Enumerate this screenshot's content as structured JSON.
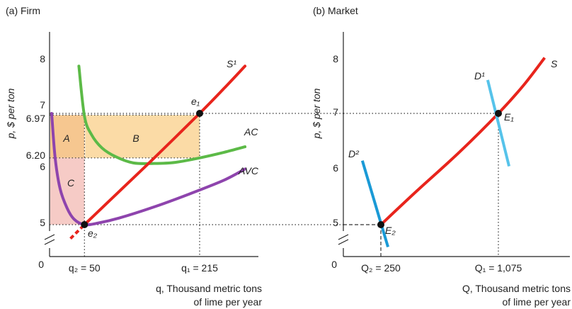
{
  "colors": {
    "axis": "#222222",
    "supply": "#e8241c",
    "ac": "#5cba47",
    "avc": "#8e44ad",
    "demand_high": "#56c3ea",
    "demand_low": "#1a9ad6",
    "region_a": "#f6c790",
    "region_b": "#fbdba6",
    "region_c": "#f6cbc6",
    "point": "#111111"
  },
  "chart_data": [
    {
      "type": "line",
      "panel_title": "(a) Firm",
      "xlabel_line1": "q, Thousand metric tons",
      "xlabel_line2": "of lime per year",
      "ylabel": "p, $ per ton",
      "origin_label": "0",
      "xlim": [
        0,
        280
      ],
      "ylim": [
        4.6,
        8.3
      ],
      "y_break": true,
      "grid": false,
      "y_ticks": [
        {
          "label": "8",
          "value": 8
        },
        {
          "label": "7",
          "value": 7
        },
        {
          "label": "6.97",
          "value": 6.97
        },
        {
          "label": "6.20",
          "value": 6.2
        },
        {
          "label": "6",
          "value": 6
        },
        {
          "label": "5",
          "value": 5
        }
      ],
      "x_ticks": [
        {
          "label": "q₂ = 50",
          "value": 50
        },
        {
          "label": "q₁ = 215",
          "value": 215
        }
      ],
      "series": [
        {
          "name": "S¹",
          "color_key": "supply",
          "x": [
            50,
            100,
            150,
            215,
            250,
            280
          ],
          "y": [
            5.0,
            5.6,
            6.2,
            7.0,
            7.45,
            7.85
          ],
          "dashed_extension": {
            "x": [
              30,
              50
            ],
            "y": [
              4.75,
              5.0
            ]
          }
        },
        {
          "name": "AC",
          "color_key": "ac",
          "x": [
            42,
            50,
            60,
            75,
            95,
            120,
            150,
            180,
            215,
            250,
            280
          ],
          "y": [
            7.85,
            6.95,
            6.62,
            6.38,
            6.22,
            6.11,
            6.1,
            6.12,
            6.2,
            6.3,
            6.4
          ]
        },
        {
          "name": "AVC",
          "color_key": "avc",
          "x": [
            3,
            8,
            15,
            25,
            35,
            50,
            70,
            100,
            150,
            200,
            250,
            280
          ],
          "y": [
            7.0,
            6.2,
            5.65,
            5.3,
            5.1,
            5.0,
            5.03,
            5.12,
            5.32,
            5.55,
            5.8,
            6.0
          ]
        }
      ],
      "regions": [
        {
          "label": "A",
          "x": [
            0,
            50
          ],
          "y": [
            6.2,
            6.97
          ],
          "color_key": "region_a"
        },
        {
          "label": "B",
          "x": [
            50,
            215
          ],
          "y": [
            6.2,
            6.97
          ],
          "color_key": "region_b"
        },
        {
          "label": "C",
          "x": [
            0,
            50
          ],
          "y": [
            5.0,
            6.2
          ],
          "color_key": "region_c"
        }
      ],
      "points": [
        {
          "label": "e₁",
          "x": 215,
          "y": 7.0
        },
        {
          "label": "e₂",
          "x": 50,
          "y": 5.0
        }
      ]
    },
    {
      "type": "line",
      "panel_title": "(b) Market",
      "xlabel_line1": "Q, Thousand metric tons",
      "xlabel_line2": "of lime per year",
      "ylabel": "p, $ per ton",
      "origin_label": "0",
      "xlim": [
        0,
        1500
      ],
      "ylim": [
        4.6,
        8.3
      ],
      "y_break": true,
      "grid": false,
      "y_ticks": [
        {
          "label": "8",
          "value": 8
        },
        {
          "label": "7",
          "value": 7
        },
        {
          "label": "6",
          "value": 6
        },
        {
          "label": "5",
          "value": 5
        }
      ],
      "x_ticks": [
        {
          "label": "Q₂ = 250",
          "value": 250
        },
        {
          "label": "Q₁ = 1,075",
          "value": 1075
        }
      ],
      "series": [
        {
          "name": "S",
          "color_key": "supply",
          "x": [
            250,
            500,
            800,
            1075,
            1250,
            1400
          ],
          "y": [
            5.0,
            5.6,
            6.3,
            7.0,
            7.5,
            8.0
          ]
        },
        {
          "name": "D¹",
          "color_key": "demand_high",
          "x": [
            1000,
            1150
          ],
          "y": [
            7.6,
            6.05
          ]
        },
        {
          "name": "D²",
          "color_key": "demand_low",
          "x": [
            120,
            300
          ],
          "y": [
            6.15,
            4.6
          ]
        }
      ],
      "points": [
        {
          "label": "E₁",
          "x": 1075,
          "y": 7.0
        },
        {
          "label": "E₂",
          "x": 250,
          "y": 5.0
        }
      ]
    }
  ]
}
